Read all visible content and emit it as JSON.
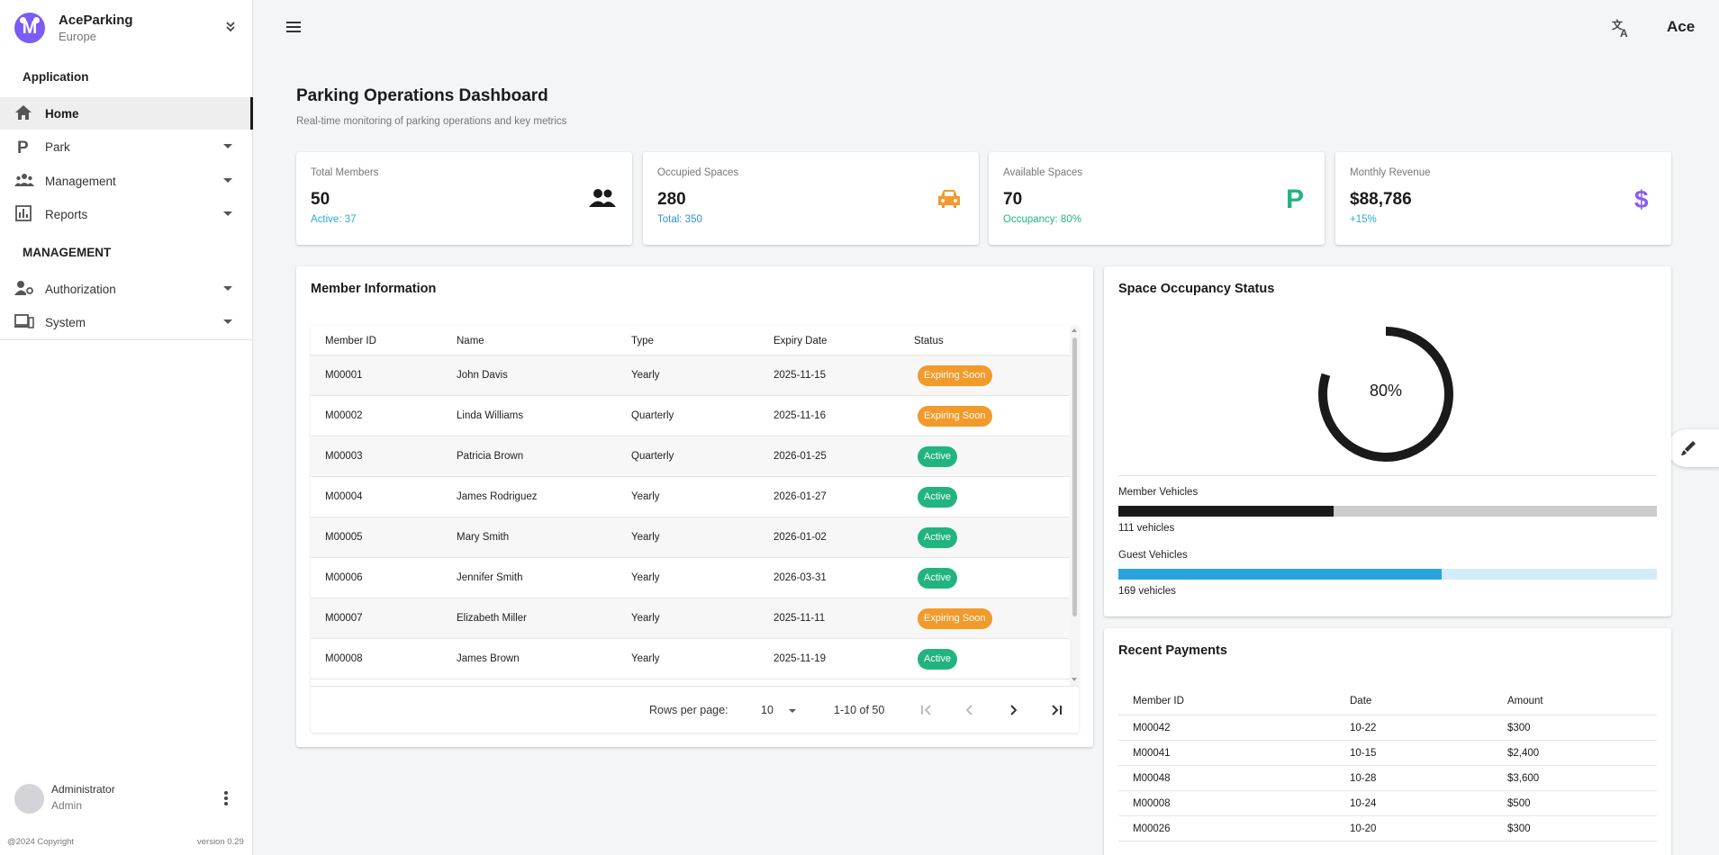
{
  "brand": {
    "name": "AceParking",
    "region": "Europe",
    "logo_letter": "M"
  },
  "sidebar": {
    "section_application": "Application",
    "section_management": "MANAGEMENT",
    "items": [
      {
        "label": "Home",
        "icon": "home-icon",
        "active": true
      },
      {
        "label": "Park",
        "icon": "parking-icon"
      },
      {
        "label": "Management",
        "icon": "people-icon"
      },
      {
        "label": "Reports",
        "icon": "chart-icon"
      },
      {
        "label": "Authorization",
        "icon": "user-key-icon"
      },
      {
        "label": "System",
        "icon": "devices-icon"
      }
    ],
    "user": {
      "name": "Administrator",
      "role": "Admin"
    },
    "copyright": "@2024 Copyright",
    "version": "version 0.29"
  },
  "topbar": {
    "user_label": "Ace"
  },
  "page": {
    "title": "Parking Operations Dashboard",
    "subtitle": "Real-time monitoring of parking operations and key metrics"
  },
  "stats": [
    {
      "label": "Total Members",
      "value": "50",
      "sub": "Active: 37",
      "sub_color": "#29a8d8",
      "icon": "group-icon",
      "icon_color": "#1a1a1a"
    },
    {
      "label": "Occupied Spaces",
      "value": "280",
      "sub": "Total: 350",
      "sub_color": "#2f8fd6",
      "icon": "car-icon",
      "icon_color": "#f29a2a"
    },
    {
      "label": "Available Spaces",
      "value": "70",
      "sub": "Occupancy: 80%",
      "sub_color": "#21b47f",
      "icon": "parking-icon",
      "icon_color": "#21b47f"
    },
    {
      "label": "Monthly Revenue",
      "value": "$88,786",
      "sub": "+15%",
      "sub_color": "#29a8d8",
      "icon": "dollar-icon",
      "icon_color": "#8b5cf6"
    }
  ],
  "members": {
    "title": "Member Information",
    "columns": [
      "Member ID",
      "Name",
      "Type",
      "Expiry Date",
      "Status"
    ],
    "rows": [
      {
        "id": "M00001",
        "name": "John Davis",
        "type": "Yearly",
        "expiry": "2025-11-15",
        "status": "Expiring Soon"
      },
      {
        "id": "M00002",
        "name": "Linda Williams",
        "type": "Quarterly",
        "expiry": "2025-11-16",
        "status": "Expiring Soon"
      },
      {
        "id": "M00003",
        "name": "Patricia Brown",
        "type": "Quarterly",
        "expiry": "2026-01-25",
        "status": "Active"
      },
      {
        "id": "M00004",
        "name": "James Rodriguez",
        "type": "Yearly",
        "expiry": "2026-01-27",
        "status": "Active"
      },
      {
        "id": "M00005",
        "name": "Mary Smith",
        "type": "Yearly",
        "expiry": "2026-01-02",
        "status": "Active"
      },
      {
        "id": "M00006",
        "name": "Jennifer Smith",
        "type": "Yearly",
        "expiry": "2026-03-31",
        "status": "Active"
      },
      {
        "id": "M00007",
        "name": "Elizabeth Miller",
        "type": "Yearly",
        "expiry": "2025-11-11",
        "status": "Expiring Soon"
      },
      {
        "id": "M00008",
        "name": "James Brown",
        "type": "Yearly",
        "expiry": "2025-11-19",
        "status": "Active"
      }
    ],
    "pagination": {
      "rows_per_page_label": "Rows per page:",
      "rows_per_page": "10",
      "range": "1-10 of 50"
    }
  },
  "occupancy": {
    "title": "Space Occupancy Status",
    "percent_label": "80%",
    "percent": 0.8,
    "member_label": "Member Vehicles",
    "member_count": "111 vehicles",
    "member_fraction": 0.4,
    "guest_label": "Guest Vehicles",
    "guest_count": "169 vehicles",
    "guest_fraction": 0.6,
    "colors": {
      "donut": "#1a1a1a",
      "member": "#1a1a1a",
      "member_track": "#cccccc",
      "guest": "#29a3e0",
      "guest_track": "#d3ecf9"
    }
  },
  "payments": {
    "title": "Recent Payments",
    "columns": [
      "Member ID",
      "Date",
      "Amount"
    ],
    "rows": [
      {
        "id": "M00042",
        "date": "10-22",
        "amount": "$300"
      },
      {
        "id": "M00041",
        "date": "10-15",
        "amount": "$2,400"
      },
      {
        "id": "M00048",
        "date": "10-28",
        "amount": "$3,600"
      },
      {
        "id": "M00008",
        "date": "10-24",
        "amount": "$500"
      },
      {
        "id": "M00026",
        "date": "10-20",
        "amount": "$300"
      }
    ]
  }
}
